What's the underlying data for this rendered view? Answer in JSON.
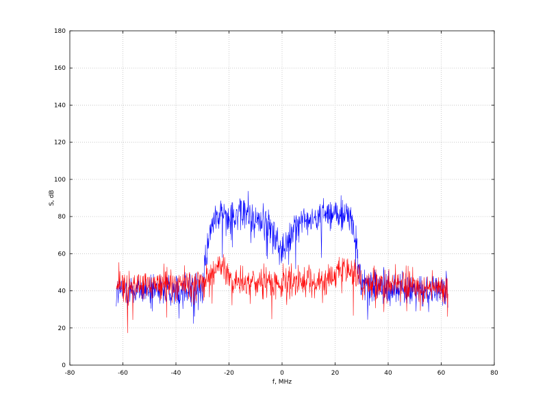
{
  "chart_data": {
    "type": "line",
    "title": "",
    "xlabel": "f, MHz",
    "ylabel": "S, dB",
    "xlim": [
      -80,
      80
    ],
    "ylim": [
      0,
      180
    ],
    "xticks": [
      -80,
      -60,
      -40,
      -20,
      0,
      20,
      40,
      60,
      80
    ],
    "yticks": [
      0,
      20,
      40,
      60,
      80,
      100,
      120,
      140,
      160,
      180
    ],
    "grid": true,
    "series_colors": [
      "#0000ff",
      "#ff0000"
    ],
    "series_seeds": [
      12345,
      67890
    ],
    "series_note": "dense noisy spectrum; blue: band 80–87 dB over ±29 MHz with dip near 0; red: ~42–50 dB noise floor with bumps near ±22 MHz",
    "envelopes": [
      {
        "name": "",
        "color": "#0000ff",
        "x": [
          -62.5,
          -40,
          -30,
          -29,
          -27,
          -25,
          -20,
          -15,
          -10,
          -6,
          -3,
          -1,
          0,
          1,
          3,
          6,
          10,
          15,
          20,
          25,
          27,
          29,
          30,
          40,
          62.5
        ],
        "y": [
          40,
          41,
          42,
          55,
          72,
          80,
          82,
          81,
          79,
          76,
          70,
          64,
          62,
          64,
          70,
          76,
          79,
          81,
          82,
          80,
          72,
          55,
          42,
          41,
          40
        ],
        "spread": 7
      },
      {
        "name": "",
        "color": "#ff0000",
        "x": [
          -62.5,
          -40,
          -30,
          -27,
          -24,
          -22,
          -20,
          -15,
          -5,
          0,
          5,
          15,
          20,
          22,
          24,
          27,
          30,
          40,
          62.5
        ],
        "y": [
          42,
          43,
          44,
          48,
          51,
          52,
          48,
          45,
          44,
          44,
          44,
          45,
          48,
          52,
          51,
          48,
          44,
          43,
          42
        ],
        "spread": 6
      }
    ]
  }
}
